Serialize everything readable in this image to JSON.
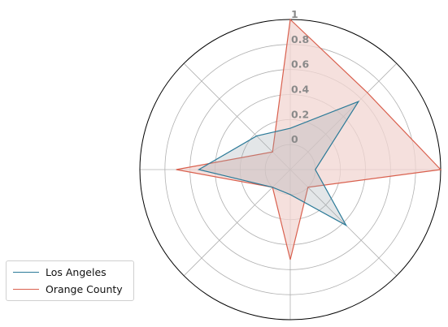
{
  "chart_data": {
    "type": "radar",
    "axes_count": 8,
    "r_ticks": [
      "0",
      "0.2",
      "0.4",
      "0.6",
      "0.8",
      "1"
    ],
    "r_range": [
      -0.2,
      1
    ],
    "grid": true,
    "legend_position": "bottom-left",
    "series": [
      {
        "name": "Los Angeles",
        "color": "#2b7a98",
        "fill": "none",
        "values": [
          0.13,
          0.57,
          0.0,
          0.43,
          0.0,
          0.0,
          0.53,
          0.18
        ]
      },
      {
        "name": "Orange County",
        "color": "#d9604e",
        "fill": "#f2d5d1",
        "values": [
          1.0,
          0.67,
          1.0,
          0.0,
          0.52,
          0.0,
          0.71,
          0.0
        ]
      }
    ]
  }
}
